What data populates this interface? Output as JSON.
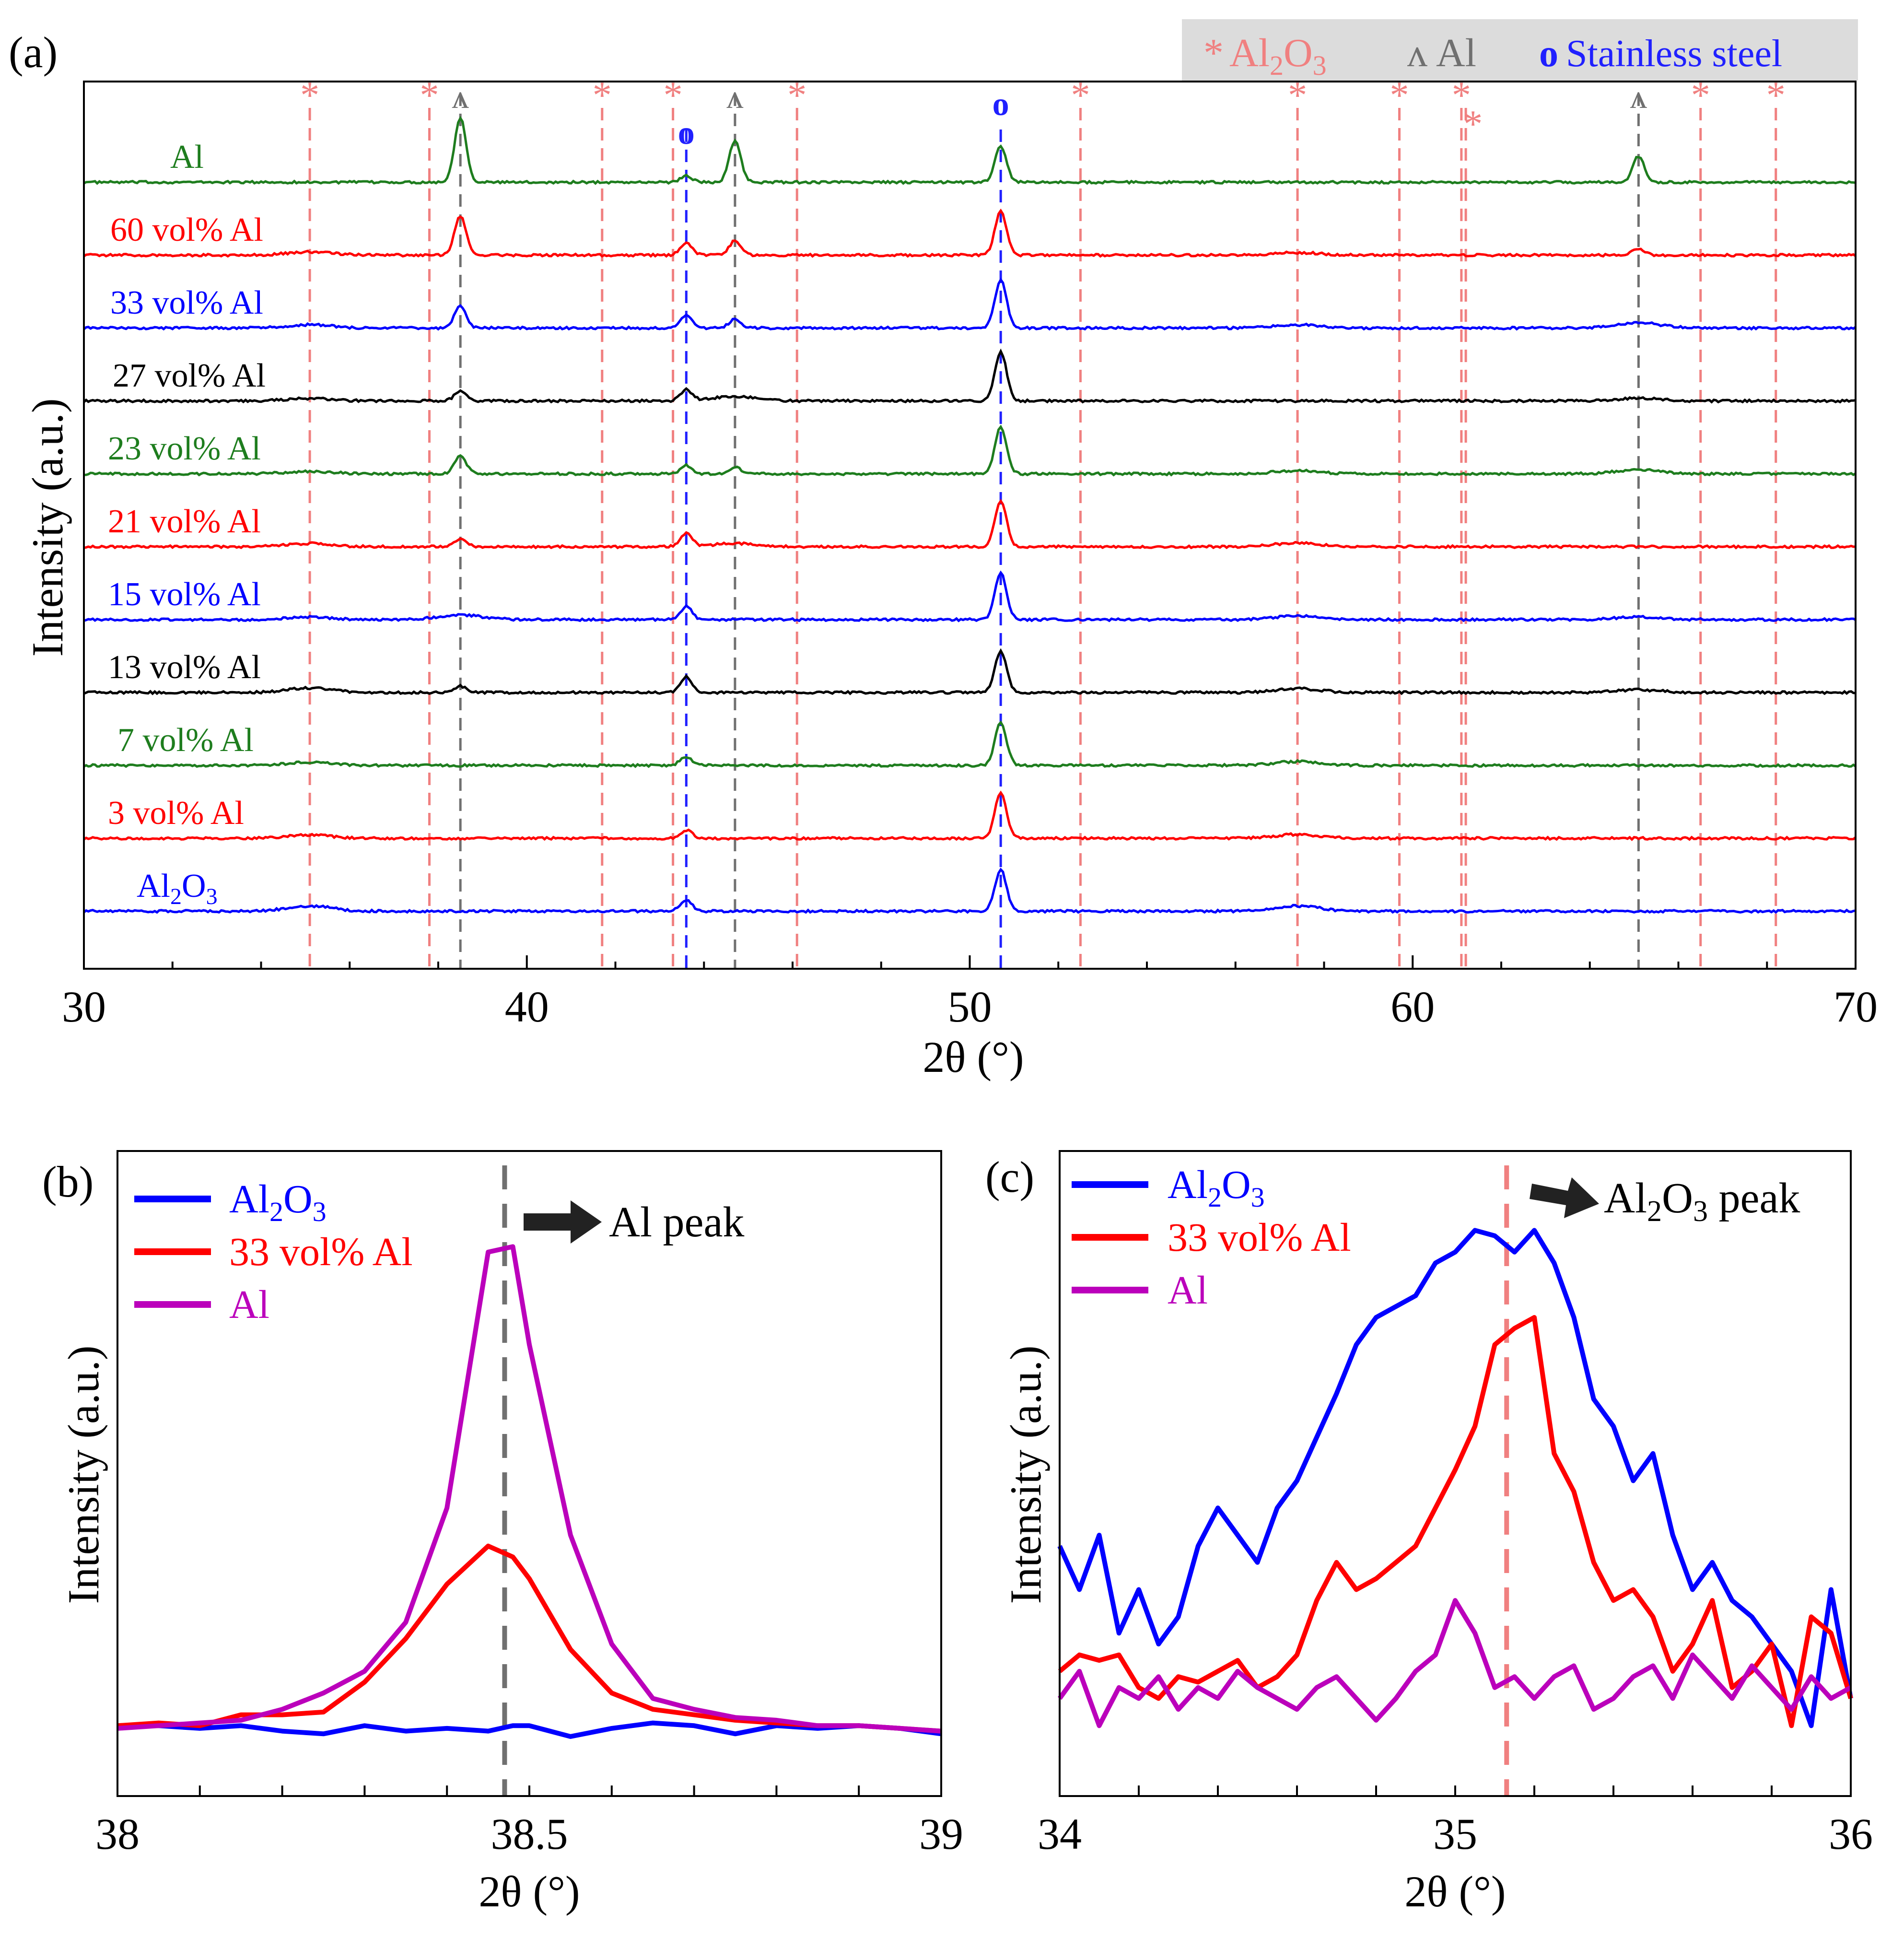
{
  "figure": {
    "panels": {
      "a": {
        "label": "(a)",
        "ylabel": "Intensity (a.u.)",
        "xlabel": "2θ (°)",
        "xticks": [
          "30",
          "40",
          "50",
          "60",
          "70"
        ]
      },
      "b": {
        "label": "(b)",
        "ylabel": "Intensity (a.u.)",
        "xlabel": "2θ (°)",
        "xticks": [
          "38",
          "38.5",
          "39"
        ],
        "annotation": "Al peak"
      },
      "c": {
        "label": "(c)",
        "ylabel": "Intensity (a.u.)",
        "xlabel": "2θ (°)",
        "xticks": [
          "34",
          "35",
          "36"
        ],
        "annotation_main": "Al",
        "annotation_sub": "2",
        "annotation_main2": "O",
        "annotation_sub2": "3",
        "annotation_tail": " peak"
      }
    },
    "legend_a": {
      "al2o3_marker": "*",
      "al2o3_main": "Al",
      "al2o3_sub": "2",
      "al2o3_main2": "O",
      "al2o3_sub2": "3",
      "al_marker": "ʌ",
      "al_text": "Al",
      "ss_marker": "o",
      "ss_text": "Stainless steel"
    },
    "legend_bc": {
      "al2o3_main": "Al",
      "al2o3_sub": "2",
      "al2o3_main2": "O",
      "al2o3_sub2": "3",
      "mid": "33 vol% Al",
      "al": "Al"
    }
  },
  "chart_data": [
    {
      "type": "line",
      "panel": "a",
      "title": "",
      "xlabel": "2θ (°)",
      "ylabel": "Intensity (a.u.)",
      "xlim": [
        30,
        70
      ],
      "colors": {
        "Al2O3": "#f08080",
        "Al": "#707070",
        "Stainless steel": "#2020ff"
      },
      "reference_lines": {
        "Al2O3": [
          35.1,
          37.8,
          41.7,
          43.3,
          46.1,
          52.5,
          57.4,
          59.7,
          61.1,
          61.2,
          66.5,
          68.2
        ],
        "Al": [
          38.5,
          44.7,
          65.1
        ],
        "Stainless steel": [
          43.6,
          50.7
        ]
      },
      "series": [
        {
          "name": "Al",
          "label": "Al",
          "color": "#1e7d1e",
          "baseline": 0,
          "peaks": [
            [
              38.5,
              1.0
            ],
            [
              43.6,
              0.1
            ],
            [
              44.7,
              0.64
            ],
            [
              50.7,
              0.55
            ],
            [
              65.1,
              0.4
            ]
          ]
        },
        {
          "name": "60 vol% Al",
          "label": "60 vol% Al",
          "color": "#ff0000",
          "baseline": 1,
          "peaks": [
            [
              35.1,
              0.05
            ],
            [
              38.5,
              0.6
            ],
            [
              43.6,
              0.18
            ],
            [
              44.7,
              0.22
            ],
            [
              50.7,
              0.68
            ],
            [
              57.4,
              0.04
            ],
            [
              65.1,
              0.1
            ]
          ]
        },
        {
          "name": "33 vol% Al",
          "label": "33 vol% Al",
          "color": "#0000ff",
          "baseline": 2,
          "peaks": [
            [
              35.1,
              0.05
            ],
            [
              38.5,
              0.35
            ],
            [
              43.6,
              0.19
            ],
            [
              44.7,
              0.14
            ],
            [
              50.7,
              0.74
            ],
            [
              57.4,
              0.05
            ],
            [
              65.1,
              0.08
            ]
          ]
        },
        {
          "name": "27 vol% Al",
          "label": "27 vol% Al",
          "color": "#000000",
          "baseline": 3,
          "peaks": [
            [
              35.1,
              0.04
            ],
            [
              38.5,
              0.16
            ],
            [
              43.6,
              0.17
            ],
            [
              44.7,
              0.07
            ],
            [
              50.7,
              0.76
            ],
            [
              65.1,
              0.04
            ]
          ]
        },
        {
          "name": "23 vol% Al",
          "label": "23 vol% Al",
          "color": "#1e7d1e",
          "baseline": 4,
          "peaks": [
            [
              35.1,
              0.04
            ],
            [
              38.5,
              0.28
            ],
            [
              43.6,
              0.13
            ],
            [
              44.7,
              0.1
            ],
            [
              50.7,
              0.72
            ],
            [
              57.4,
              0.05
            ],
            [
              65.1,
              0.06
            ]
          ]
        },
        {
          "name": "21 vol% Al",
          "label": "21 vol% Al",
          "color": "#ff0000",
          "baseline": 5,
          "peaks": [
            [
              35.1,
              0.05
            ],
            [
              38.5,
              0.12
            ],
            [
              43.6,
              0.2
            ],
            [
              44.7,
              0.05
            ],
            [
              50.7,
              0.7
            ],
            [
              57.4,
              0.06
            ]
          ]
        },
        {
          "name": "15 vol% Al",
          "label": "15 vol% Al",
          "color": "#0000ff",
          "baseline": 6,
          "peaks": [
            [
              35.1,
              0.04
            ],
            [
              38.5,
              0.07
            ],
            [
              43.6,
              0.2
            ],
            [
              50.7,
              0.72
            ],
            [
              57.4,
              0.06
            ],
            [
              65.1,
              0.04
            ]
          ]
        },
        {
          "name": "13 vol% Al",
          "label": "13 vol% Al",
          "color": "#000000",
          "baseline": 7,
          "peaks": [
            [
              35.1,
              0.07
            ],
            [
              38.5,
              0.1
            ],
            [
              43.6,
              0.24
            ],
            [
              50.7,
              0.64
            ],
            [
              57.4,
              0.06
            ],
            [
              65.1,
              0.04
            ]
          ]
        },
        {
          "name": "7 vol% Al",
          "label": "7 vol% Al",
          "color": "#1e7d1e",
          "baseline": 8,
          "peaks": [
            [
              35.1,
              0.05
            ],
            [
              43.6,
              0.14
            ],
            [
              50.7,
              0.66
            ],
            [
              57.4,
              0.06
            ]
          ]
        },
        {
          "name": "3 vol% Al",
          "label": "3 vol% Al",
          "color": "#ff0000",
          "baseline": 9,
          "peaks": [
            [
              35.1,
              0.05
            ],
            [
              43.6,
              0.13
            ],
            [
              50.7,
              0.7
            ],
            [
              57.4,
              0.06
            ]
          ]
        },
        {
          "name": "Al2O3",
          "label": "Al2O3",
          "color": "#0000ff",
          "baseline": 10,
          "peaks": [
            [
              35.1,
              0.08
            ],
            [
              43.6,
              0.18
            ],
            [
              50.7,
              0.64
            ],
            [
              57.4,
              0.08
            ]
          ]
        }
      ]
    },
    {
      "type": "line",
      "panel": "b",
      "xlabel": "2θ (°)",
      "ylabel": "Intensity (a.u.)",
      "xlim": [
        38,
        39
      ],
      "ylim": [
        0,
        1
      ],
      "reference_line": 38.47,
      "x": [
        38.0,
        38.05,
        38.1,
        38.15,
        38.2,
        38.25,
        38.3,
        38.35,
        38.4,
        38.45,
        38.48,
        38.5,
        38.55,
        38.6,
        38.65,
        38.7,
        38.75,
        38.8,
        38.85,
        38.9,
        38.95,
        39.0
      ],
      "series": [
        {
          "name": "Al2O3",
          "color": "#0000ff",
          "values": [
            0.05,
            0.05,
            0.045,
            0.05,
            0.04,
            0.035,
            0.05,
            0.04,
            0.045,
            0.04,
            0.05,
            0.05,
            0.03,
            0.045,
            0.055,
            0.05,
            0.035,
            0.05,
            0.045,
            0.05,
            0.045,
            0.035
          ]
        },
        {
          "name": "33 vol% Al",
          "color": "#ff0000",
          "values": [
            0.05,
            0.055,
            0.05,
            0.07,
            0.07,
            0.075,
            0.13,
            0.21,
            0.31,
            0.38,
            0.36,
            0.32,
            0.19,
            0.11,
            0.08,
            0.07,
            0.06,
            0.055,
            0.05,
            0.05,
            0.045,
            0.04
          ]
        },
        {
          "name": "Al",
          "color": "#bb00bb",
          "values": [
            0.045,
            0.05,
            0.055,
            0.06,
            0.08,
            0.11,
            0.15,
            0.24,
            0.45,
            0.92,
            0.93,
            0.75,
            0.4,
            0.2,
            0.1,
            0.08,
            0.065,
            0.06,
            0.05,
            0.05,
            0.045,
            0.04
          ]
        }
      ]
    },
    {
      "type": "line",
      "panel": "c",
      "xlabel": "2θ (°)",
      "ylabel": "Intensity (a.u.)",
      "xlim": [
        34,
        36
      ],
      "ylim": [
        0,
        1
      ],
      "reference_line": 35.13,
      "x": [
        34.0,
        34.05,
        34.1,
        34.15,
        34.2,
        34.25,
        34.3,
        34.35,
        34.4,
        34.45,
        34.5,
        34.55,
        34.6,
        34.65,
        34.7,
        34.75,
        34.8,
        34.85,
        34.9,
        34.95,
        35.0,
        35.05,
        35.1,
        35.15,
        35.2,
        35.25,
        35.3,
        35.35,
        35.4,
        35.45,
        35.5,
        35.55,
        35.6,
        35.65,
        35.7,
        35.75,
        35.8,
        35.85,
        35.9,
        35.95,
        36.0
      ],
      "series": [
        {
          "name": "Al2O3",
          "color": "#0000ff",
          "values": [
            0.38,
            0.3,
            0.4,
            0.22,
            0.3,
            0.2,
            0.25,
            0.38,
            0.45,
            0.4,
            0.35,
            0.45,
            0.5,
            0.58,
            0.66,
            0.75,
            0.8,
            0.82,
            0.84,
            0.9,
            0.92,
            0.96,
            0.95,
            0.92,
            0.96,
            0.9,
            0.8,
            0.65,
            0.6,
            0.5,
            0.55,
            0.4,
            0.3,
            0.35,
            0.28,
            0.25,
            0.2,
            0.15,
            0.05,
            0.3,
            0.1
          ]
        },
        {
          "name": "33 vol% Al",
          "color": "#ff0000",
          "values": [
            0.15,
            0.18,
            0.17,
            0.18,
            0.12,
            0.1,
            0.14,
            0.13,
            0.15,
            0.17,
            0.12,
            0.14,
            0.18,
            0.28,
            0.35,
            0.3,
            0.32,
            0.35,
            0.38,
            0.45,
            0.52,
            0.6,
            0.75,
            0.78,
            0.8,
            0.55,
            0.48,
            0.35,
            0.28,
            0.3,
            0.25,
            0.15,
            0.2,
            0.28,
            0.12,
            0.15,
            0.2,
            0.05,
            0.25,
            0.22,
            0.1
          ]
        },
        {
          "name": "Al",
          "color": "#bb00bb",
          "values": [
            0.1,
            0.15,
            0.05,
            0.12,
            0.1,
            0.14,
            0.08,
            0.12,
            0.1,
            0.15,
            0.12,
            0.1,
            0.08,
            0.12,
            0.14,
            0.1,
            0.06,
            0.1,
            0.15,
            0.18,
            0.28,
            0.22,
            0.12,
            0.14,
            0.1,
            0.14,
            0.16,
            0.08,
            0.1,
            0.14,
            0.16,
            0.1,
            0.18,
            0.14,
            0.1,
            0.16,
            0.12,
            0.08,
            0.14,
            0.1,
            0.12
          ]
        }
      ]
    }
  ]
}
